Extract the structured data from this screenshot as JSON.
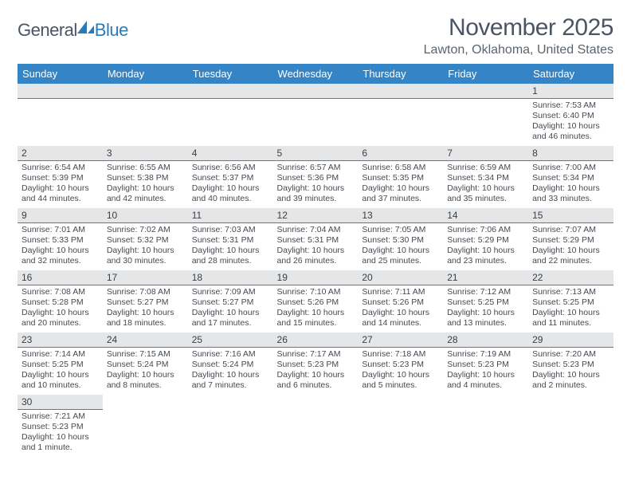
{
  "brand": {
    "text_general": "General",
    "text_blue": "Blue",
    "logo_color": "#2a7ab8",
    "text_gray": "#4b5563"
  },
  "title": {
    "month_year": "November 2025",
    "location": "Lawton, Oklahoma, United States",
    "title_color": "#4b5563",
    "location_color": "#5a6470",
    "title_fontsize": 30,
    "location_fontsize": 16
  },
  "calendar": {
    "header_bg": "#3585c6",
    "header_fg": "#ffffff",
    "daynum_bg": "#e4e6e8",
    "daynum_border": "#3585c6",
    "cell_text_color": "#454a50",
    "day_headers": [
      "Sunday",
      "Monday",
      "Tuesday",
      "Wednesday",
      "Thursday",
      "Friday",
      "Saturday"
    ],
    "weeks": [
      [
        {
          "empty": true
        },
        {
          "empty": true
        },
        {
          "empty": true
        },
        {
          "empty": true
        },
        {
          "empty": true
        },
        {
          "empty": true
        },
        {
          "num": "1",
          "sunrise": "Sunrise: 7:53 AM",
          "sunset": "Sunset: 6:40 PM",
          "daylight": "Daylight: 10 hours and 46 minutes."
        }
      ],
      [
        {
          "num": "2",
          "sunrise": "Sunrise: 6:54 AM",
          "sunset": "Sunset: 5:39 PM",
          "daylight": "Daylight: 10 hours and 44 minutes."
        },
        {
          "num": "3",
          "sunrise": "Sunrise: 6:55 AM",
          "sunset": "Sunset: 5:38 PM",
          "daylight": "Daylight: 10 hours and 42 minutes."
        },
        {
          "num": "4",
          "sunrise": "Sunrise: 6:56 AM",
          "sunset": "Sunset: 5:37 PM",
          "daylight": "Daylight: 10 hours and 40 minutes."
        },
        {
          "num": "5",
          "sunrise": "Sunrise: 6:57 AM",
          "sunset": "Sunset: 5:36 PM",
          "daylight": "Daylight: 10 hours and 39 minutes."
        },
        {
          "num": "6",
          "sunrise": "Sunrise: 6:58 AM",
          "sunset": "Sunset: 5:35 PM",
          "daylight": "Daylight: 10 hours and 37 minutes."
        },
        {
          "num": "7",
          "sunrise": "Sunrise: 6:59 AM",
          "sunset": "Sunset: 5:34 PM",
          "daylight": "Daylight: 10 hours and 35 minutes."
        },
        {
          "num": "8",
          "sunrise": "Sunrise: 7:00 AM",
          "sunset": "Sunset: 5:34 PM",
          "daylight": "Daylight: 10 hours and 33 minutes."
        }
      ],
      [
        {
          "num": "9",
          "sunrise": "Sunrise: 7:01 AM",
          "sunset": "Sunset: 5:33 PM",
          "daylight": "Daylight: 10 hours and 32 minutes."
        },
        {
          "num": "10",
          "sunrise": "Sunrise: 7:02 AM",
          "sunset": "Sunset: 5:32 PM",
          "daylight": "Daylight: 10 hours and 30 minutes."
        },
        {
          "num": "11",
          "sunrise": "Sunrise: 7:03 AM",
          "sunset": "Sunset: 5:31 PM",
          "daylight": "Daylight: 10 hours and 28 minutes."
        },
        {
          "num": "12",
          "sunrise": "Sunrise: 7:04 AM",
          "sunset": "Sunset: 5:31 PM",
          "daylight": "Daylight: 10 hours and 26 minutes."
        },
        {
          "num": "13",
          "sunrise": "Sunrise: 7:05 AM",
          "sunset": "Sunset: 5:30 PM",
          "daylight": "Daylight: 10 hours and 25 minutes."
        },
        {
          "num": "14",
          "sunrise": "Sunrise: 7:06 AM",
          "sunset": "Sunset: 5:29 PM",
          "daylight": "Daylight: 10 hours and 23 minutes."
        },
        {
          "num": "15",
          "sunrise": "Sunrise: 7:07 AM",
          "sunset": "Sunset: 5:29 PM",
          "daylight": "Daylight: 10 hours and 22 minutes."
        }
      ],
      [
        {
          "num": "16",
          "sunrise": "Sunrise: 7:08 AM",
          "sunset": "Sunset: 5:28 PM",
          "daylight": "Daylight: 10 hours and 20 minutes."
        },
        {
          "num": "17",
          "sunrise": "Sunrise: 7:08 AM",
          "sunset": "Sunset: 5:27 PM",
          "daylight": "Daylight: 10 hours and 18 minutes."
        },
        {
          "num": "18",
          "sunrise": "Sunrise: 7:09 AM",
          "sunset": "Sunset: 5:27 PM",
          "daylight": "Daylight: 10 hours and 17 minutes."
        },
        {
          "num": "19",
          "sunrise": "Sunrise: 7:10 AM",
          "sunset": "Sunset: 5:26 PM",
          "daylight": "Daylight: 10 hours and 15 minutes."
        },
        {
          "num": "20",
          "sunrise": "Sunrise: 7:11 AM",
          "sunset": "Sunset: 5:26 PM",
          "daylight": "Daylight: 10 hours and 14 minutes."
        },
        {
          "num": "21",
          "sunrise": "Sunrise: 7:12 AM",
          "sunset": "Sunset: 5:25 PM",
          "daylight": "Daylight: 10 hours and 13 minutes."
        },
        {
          "num": "22",
          "sunrise": "Sunrise: 7:13 AM",
          "sunset": "Sunset: 5:25 PM",
          "daylight": "Daylight: 10 hours and 11 minutes."
        }
      ],
      [
        {
          "num": "23",
          "sunrise": "Sunrise: 7:14 AM",
          "sunset": "Sunset: 5:25 PM",
          "daylight": "Daylight: 10 hours and 10 minutes."
        },
        {
          "num": "24",
          "sunrise": "Sunrise: 7:15 AM",
          "sunset": "Sunset: 5:24 PM",
          "daylight": "Daylight: 10 hours and 8 minutes."
        },
        {
          "num": "25",
          "sunrise": "Sunrise: 7:16 AM",
          "sunset": "Sunset: 5:24 PM",
          "daylight": "Daylight: 10 hours and 7 minutes."
        },
        {
          "num": "26",
          "sunrise": "Sunrise: 7:17 AM",
          "sunset": "Sunset: 5:23 PM",
          "daylight": "Daylight: 10 hours and 6 minutes."
        },
        {
          "num": "27",
          "sunrise": "Sunrise: 7:18 AM",
          "sunset": "Sunset: 5:23 PM",
          "daylight": "Daylight: 10 hours and 5 minutes."
        },
        {
          "num": "28",
          "sunrise": "Sunrise: 7:19 AM",
          "sunset": "Sunset: 5:23 PM",
          "daylight": "Daylight: 10 hours and 4 minutes."
        },
        {
          "num": "29",
          "sunrise": "Sunrise: 7:20 AM",
          "sunset": "Sunset: 5:23 PM",
          "daylight": "Daylight: 10 hours and 2 minutes."
        }
      ],
      [
        {
          "num": "30",
          "sunrise": "Sunrise: 7:21 AM",
          "sunset": "Sunset: 5:23 PM",
          "daylight": "Daylight: 10 hours and 1 minute."
        },
        {
          "blank": true
        },
        {
          "blank": true
        },
        {
          "blank": true
        },
        {
          "blank": true
        },
        {
          "blank": true
        },
        {
          "blank": true
        }
      ]
    ]
  }
}
